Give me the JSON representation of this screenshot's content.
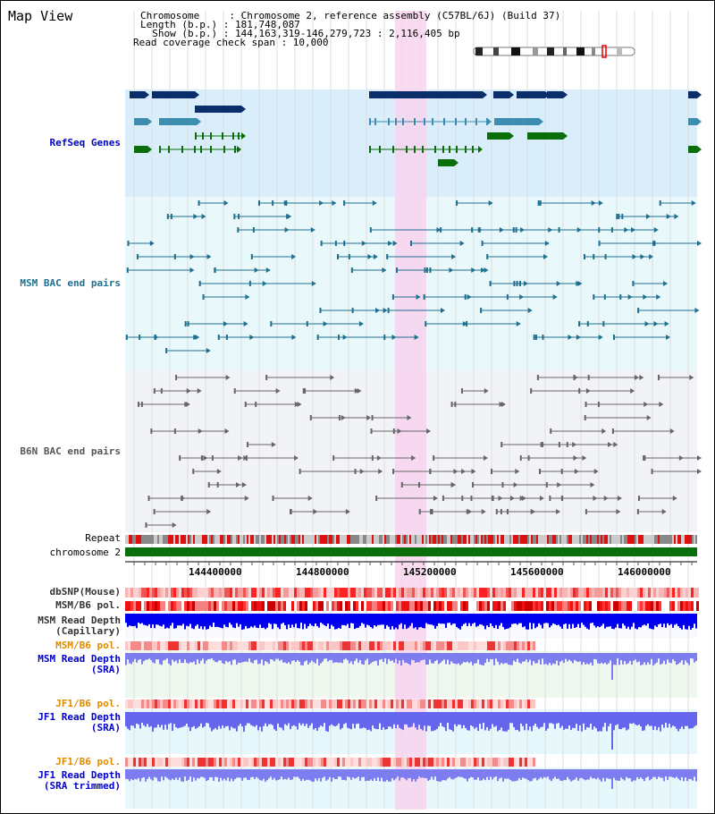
{
  "header": {
    "title": "Map View",
    "chromosome_line": "Chromosome     : Chromosome 2, reference assembly (C57BL/6J) (Build 37)",
    "length_line": "Length (b.p.) : 181,748,087",
    "show_line": "  Show (b.p.) : 144,163,319-146,279,723 : 2,116,405 bp",
    "coverage_line": "Read coverage check span : 10,000"
  },
  "tracks": {
    "refseq": "RefSeq Genes",
    "msm_bac": "MSM BAC end pairs",
    "b6n_bac": "B6N BAC end pairs",
    "repeat": "Repeat",
    "chromosome": "chromosome 2",
    "dbsnp": "dbSNP(Mouse)",
    "msm_b6_pol_1": "MSM/B6 pol.",
    "msm_read_depth_cap": "MSM Read Depth\n(Capillary)",
    "msm_b6_pol_2": "MSM/B6 pol.",
    "msm_read_depth_sra": "MSM Read Depth\n(SRA)",
    "jf1_b6_pol_1": "JF1/B6 pol.",
    "jf1_read_depth_sra": "JF1 Read Depth\n(SRA)",
    "jf1_b6_pol_2": "JF1/B6 pol.",
    "jf1_read_depth_trim": "JF1 Read Depth\n(SRA trimmed)"
  },
  "axis": {
    "ticks": [
      "144400000",
      "144800000",
      "145200000",
      "145600000",
      "146000000"
    ]
  },
  "colors": {
    "refseq_bg": "#d9eefa",
    "msm_bg": "#e8f8fb",
    "b6n_bg": "#f1f3f6",
    "highlight": "#f7d4ef",
    "chromosome_bar": "#0a6e0a",
    "snp_red": "#ee3333",
    "depth_blue": "#0000ee"
  }
}
